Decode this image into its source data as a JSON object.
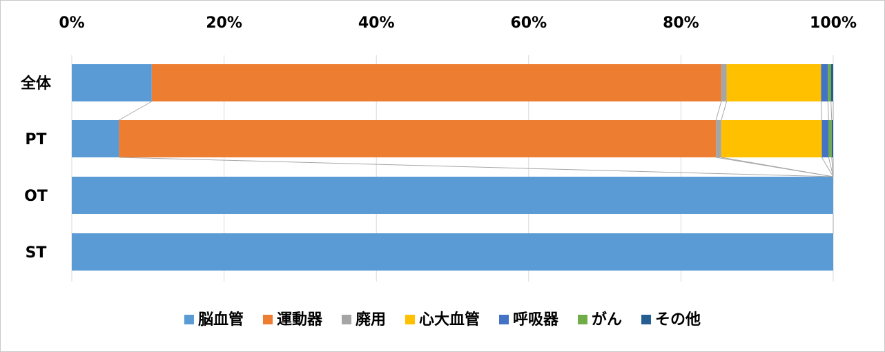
{
  "chart_data": {
    "type": "bar",
    "orientation": "horizontal",
    "stacking": "percent",
    "categories": [
      "全体",
      "PT",
      "OT",
      "ST"
    ],
    "series": [
      {
        "name": "脳血管",
        "color": "#5B9BD5",
        "values": [
          10.5,
          6.2,
          100,
          100
        ]
      },
      {
        "name": "運動器",
        "color": "#ED7D31",
        "values": [
          74.8,
          78.4,
          0,
          0
        ]
      },
      {
        "name": "廃用",
        "color": "#A5A5A5",
        "values": [
          0.7,
          0.7,
          0,
          0
        ]
      },
      {
        "name": "心大血管",
        "color": "#FFC000",
        "values": [
          12.4,
          13.2,
          0,
          0
        ]
      },
      {
        "name": "呼吸器",
        "color": "#4472C4",
        "values": [
          0.9,
          0.9,
          0,
          0
        ]
      },
      {
        "name": "がん",
        "color": "#70AD47",
        "values": [
          0.4,
          0.4,
          0,
          0
        ]
      },
      {
        "name": "その他",
        "color": "#255E91",
        "values": [
          0.3,
          0.2,
          0,
          0
        ]
      }
    ],
    "x_ticks": [
      "0%",
      "20%",
      "40%",
      "60%",
      "80%",
      "100%"
    ],
    "xlim": [
      0,
      100
    ],
    "x_axis_position": "top",
    "grid": true,
    "series_lines": true,
    "legend_position": "bottom"
  }
}
